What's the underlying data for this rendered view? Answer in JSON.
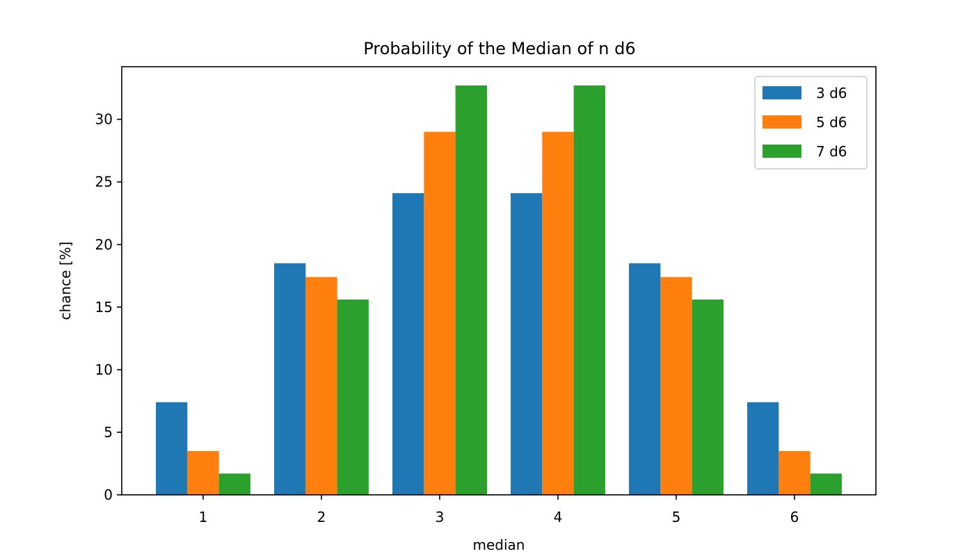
{
  "chart_data": {
    "type": "bar",
    "title": "Probability of the Median of n d6",
    "xlabel": "median",
    "ylabel": "chance [%]",
    "categories": [
      "1",
      "2",
      "3",
      "4",
      "5",
      "6"
    ],
    "ylim": [
      0,
      34.2
    ],
    "yticks": [
      "0",
      "5",
      "10",
      "15",
      "20",
      "25",
      "30"
    ],
    "grid": false,
    "legend_position": "top-right",
    "series": [
      {
        "name": "3 d6",
        "color": "#1f77b4",
        "values": [
          7.4,
          18.5,
          24.1,
          24.1,
          18.5,
          7.4
        ]
      },
      {
        "name": "5 d6",
        "color": "#ff7f0e",
        "values": [
          3.5,
          17.4,
          29.0,
          29.0,
          17.4,
          3.5
        ]
      },
      {
        "name": "7 d6",
        "color": "#2ca02c",
        "values": [
          1.7,
          15.6,
          32.7,
          32.7,
          15.6,
          1.7
        ]
      }
    ]
  }
}
